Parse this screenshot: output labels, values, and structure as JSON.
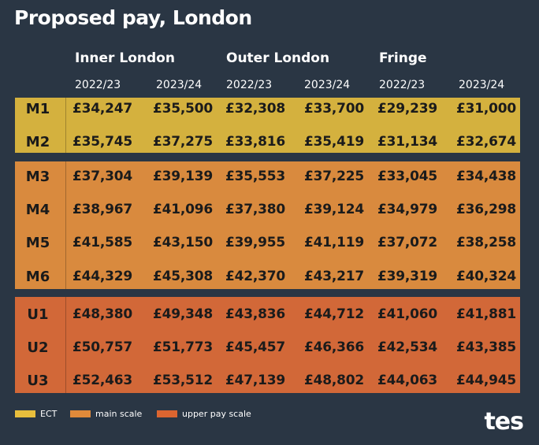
{
  "title": "Proposed pay, London",
  "regions": [
    "Inner London",
    "Outer London",
    "Fringe"
  ],
  "years": [
    "2022/23",
    "2023/24",
    "2022/23",
    "2023/24",
    "2022/23",
    "2023/24"
  ],
  "rows": [
    {
      "label": "M1",
      "values": [
        "£34,247",
        "£35,500",
        "£32,308",
        "£33,700",
        "£29,239",
        "£31,000"
      ]
    },
    {
      "label": "M2",
      "values": [
        "£35,745",
        "£37,275",
        "£33,816",
        "£35,419",
        "£31,134",
        "£32,674"
      ]
    },
    {
      "label": "M3",
      "values": [
        "£37,304",
        "£39,139",
        "£35,553",
        "£37,225",
        "£33,045",
        "£34,438"
      ]
    },
    {
      "label": "M4",
      "values": [
        "£38,967",
        "£41,096",
        "£37,380",
        "£39,124",
        "£34,979",
        "£36,298"
      ]
    },
    {
      "label": "M5",
      "values": [
        "£41,585",
        "£43,150",
        "£39,955",
        "£41,119",
        "£37,072",
        "£38,258"
      ]
    },
    {
      "label": "M6",
      "values": [
        "£44,329",
        "£45,308",
        "£42,370",
        "£43,217",
        "£39,319",
        "£40,324"
      ]
    },
    {
      "label": "U1",
      "values": [
        "£48,380",
        "£49,348",
        "£43,836",
        "£44,712",
        "£41,060",
        "£41,881"
      ]
    },
    {
      "label": "U2",
      "values": [
        "£50,757",
        "£51,773",
        "£45,457",
        "£46,366",
        "£42,534",
        "£43,385"
      ]
    },
    {
      "label": "U3",
      "values": [
        "£52,463",
        "£53,512",
        "£47,139",
        "£48,802",
        "£44,063",
        "£44,945"
      ]
    }
  ],
  "legend": [
    {
      "label": "ECT",
      "color": "#e8be3c"
    },
    {
      "label": "main scale",
      "color": "#e08a3a"
    },
    {
      "label": "upper pay scale",
      "color": "#dc6530"
    }
  ],
  "logo": "tes",
  "colors": {
    "background": "#2a3644",
    "ect_band": "#d4b13e",
    "main_band": "#d98a3e",
    "upper_band": "#d26838"
  }
}
